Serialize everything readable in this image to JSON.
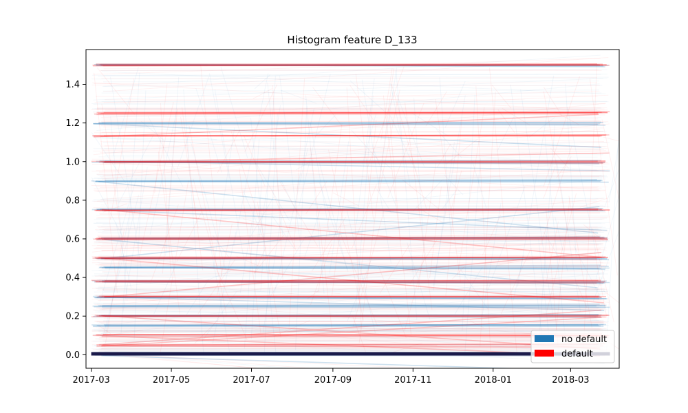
{
  "chart_data": {
    "type": "line",
    "title": "Histogram feature D_133",
    "xlabel": "",
    "ylabel": "",
    "x_ticks": [
      "2017-03",
      "2017-05",
      "2017-07",
      "2017-09",
      "2017-11",
      "2018-01",
      "2018-03"
    ],
    "y_ticks": [
      "0.0",
      "0.2",
      "0.4",
      "0.6",
      "0.8",
      "1.0",
      "1.2",
      "1.4"
    ],
    "xlim": [
      "2017-02-25",
      "2018-04-07"
    ],
    "ylim": [
      -0.07,
      1.58
    ],
    "data_range_x": [
      "2017-03-01",
      "2018-03-31"
    ],
    "grid": false,
    "legend_position": "bottom-right",
    "colors": {
      "no_default": "#1f77b4",
      "default": "#ff0000",
      "zero_line": "#1a1a4a"
    },
    "series": [
      {
        "name": "no default",
        "color": "#1f77b4",
        "dense_levels": [
          0.0,
          0.15,
          0.2,
          0.25,
          0.3,
          0.38,
          0.45,
          0.5,
          0.6,
          0.75,
          0.9,
          1.0,
          1.2,
          1.5
        ]
      },
      {
        "name": "default",
        "color": "#ff0000",
        "dense_levels": [
          0.05,
          0.1,
          0.2,
          0.3,
          0.38,
          0.5,
          0.6,
          0.75,
          1.0,
          1.13,
          1.25,
          1.5
        ]
      }
    ]
  }
}
